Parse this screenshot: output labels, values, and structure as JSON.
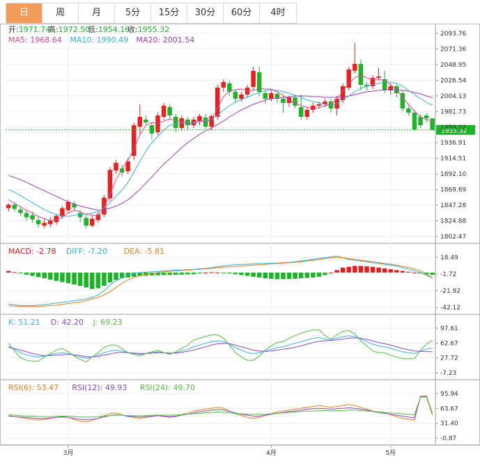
{
  "tabs": [
    "日",
    "周",
    "月",
    "5分",
    "15分",
    "30分",
    "60分",
    "4时"
  ],
  "active_tab": 0,
  "colors": {
    "up": "#e82020",
    "down": "#1eb42a",
    "ma5": "#d94a8c",
    "ma10": "#36b4d8",
    "ma20": "#9b3fb5",
    "macd": "#e11d1d",
    "diff": "#2fb0dc",
    "dea": "#f07c1b",
    "k": "#3bb0e0",
    "d": "#8a49c8",
    "j": "#4fbf3c",
    "rsi6": "#f07c1b",
    "rsi12": "#8a49c8",
    "rsi24": "#4fbf3c"
  },
  "price_panel": {
    "info": [
      {
        "label": "开:",
        "value": "1971.74"
      },
      {
        "label": "高:",
        "value": "1972.50"
      },
      {
        "label": "低:",
        "value": "1954.16"
      },
      {
        "label": "收:",
        "value": "1955.32"
      }
    ],
    "ma_labels": [
      "MA5: 1968.64",
      "MA10: 1990.49",
      "MA20: 2001.54"
    ],
    "current_price": "1955.32",
    "ticks": [
      "2093.76",
      "2071.36",
      "2048.95",
      "2026.54",
      "2004.13",
      "1981.73",
      "1959.32",
      "1936.91",
      "1914.51",
      "1892.10",
      "1869.69",
      "1847.28",
      "1824.88",
      "1802.47"
    ]
  },
  "macd_panel": {
    "labels": [
      "MACD: -2.78",
      "DIFF: -7.20",
      "DEA: -5.81"
    ],
    "ticks": [
      "18.49",
      "-1.72",
      "-21.92",
      "-42.12"
    ]
  },
  "kdj_panel": {
    "labels": [
      "K: 51.21",
      "D: 42.20",
      "J: 69.23"
    ],
    "ticks": [
      "97.61",
      "62.67",
      "27.72",
      "-7.23"
    ]
  },
  "rsi_panel": {
    "labels": [
      "RSI(6): 53.47",
      "RSI(12): 49.93",
      "RSI(24): 49.70"
    ],
    "ticks": [
      "95.94",
      "63.67",
      "31.40",
      "-0.87"
    ]
  },
  "x_labels": [
    "3月",
    "4月",
    "5月"
  ],
  "chart_data": [
    {
      "type": "candlestick",
      "title": "",
      "ylim": [
        1802.47,
        2093.76
      ],
      "candles": [
        [
          1843,
          1848,
          1838,
          1850
        ],
        [
          1848,
          1842,
          1838,
          1851
        ],
        [
          1841,
          1836,
          1832,
          1845
        ],
        [
          1836,
          1830,
          1825,
          1840
        ],
        [
          1833,
          1827,
          1822,
          1838
        ],
        [
          1826,
          1820,
          1815,
          1830
        ],
        [
          1818,
          1822,
          1814,
          1828
        ],
        [
          1820,
          1825,
          1816,
          1830
        ],
        [
          1823,
          1832,
          1819,
          1835
        ],
        [
          1831,
          1843,
          1828,
          1846
        ],
        [
          1840,
          1852,
          1836,
          1855
        ],
        [
          1849,
          1844,
          1840,
          1853
        ],
        [
          1836,
          1830,
          1823,
          1840
        ],
        [
          1829,
          1818,
          1814,
          1833
        ],
        [
          1818,
          1828,
          1815,
          1832
        ],
        [
          1826,
          1834,
          1822,
          1838
        ],
        [
          1834,
          1858,
          1830,
          1862
        ],
        [
          1857,
          1898,
          1853,
          1902
        ],
        [
          1897,
          1908,
          1892,
          1912
        ],
        [
          1900,
          1894,
          1888,
          1905
        ],
        [
          1896,
          1910,
          1892,
          1915
        ],
        [
          1918,
          1962,
          1912,
          1966
        ],
        [
          1960,
          1974,
          1950,
          1992
        ],
        [
          1970,
          1966,
          1962,
          1976
        ],
        [
          1962,
          1950,
          1942,
          1967
        ],
        [
          1952,
          1976,
          1948,
          1980
        ],
        [
          1974,
          1990,
          1970,
          1994
        ],
        [
          1988,
          1976,
          1970,
          1992
        ],
        [
          1974,
          1958,
          1952,
          1978
        ],
        [
          1958,
          1972,
          1954,
          1976
        ],
        [
          1970,
          1962,
          1956,
          1974
        ],
        [
          1962,
          1970,
          1958,
          1974
        ],
        [
          1968,
          1975,
          1962,
          1978
        ],
        [
          1973,
          1960,
          1956,
          1978
        ],
        [
          1960,
          1975,
          1955,
          1978
        ],
        [
          1974,
          2016,
          1970,
          2020
        ],
        [
          2016,
          2024,
          2010,
          2028
        ],
        [
          2022,
          2010,
          2004,
          2026
        ],
        [
          2010,
          2000,
          1994,
          2014
        ],
        [
          2000,
          2006,
          1996,
          2010
        ],
        [
          2006,
          2016,
          2002,
          2020
        ],
        [
          2017,
          2040,
          2012,
          2046
        ],
        [
          2038,
          2010,
          2004,
          2046
        ],
        [
          2008,
          2000,
          1993,
          2012
        ],
        [
          2000,
          2008,
          1996,
          2012
        ],
        [
          2007,
          2000,
          1994,
          2010
        ],
        [
          2000,
          1994,
          1980,
          2004
        ],
        [
          1994,
          2002,
          1988,
          2004
        ],
        [
          2002,
          1990,
          1986,
          2006
        ],
        [
          1988,
          1974,
          1970,
          2006
        ],
        [
          1974,
          1984,
          1970,
          1988
        ],
        [
          1984,
          1990,
          1980,
          1994
        ],
        [
          1990,
          1992,
          1986,
          1996
        ],
        [
          1992,
          1996,
          1988,
          2000
        ],
        [
          1996,
          1986,
          1980,
          2000
        ],
        [
          1986,
          2000,
          1976,
          2004
        ],
        [
          1998,
          2018,
          1994,
          2022
        ],
        [
          2016,
          2042,
          2012,
          2046
        ],
        [
          2040,
          2050,
          2036,
          2080
        ],
        [
          2050,
          2020,
          2012,
          2056
        ],
        [
          2020,
          2018,
          2012,
          2024
        ],
        [
          2018,
          2030,
          2014,
          2034
        ],
        [
          2030,
          2032,
          2026,
          2044
        ],
        [
          2028,
          2012,
          2008,
          2040
        ],
        [
          2012,
          2018,
          2006,
          2022
        ],
        [
          2018,
          2008,
          2002,
          2020
        ],
        [
          2008,
          1986,
          1982,
          2012
        ],
        [
          1986,
          1980,
          1976,
          1990
        ],
        [
          1980,
          1956,
          1954,
          1984
        ],
        [
          1974,
          1962,
          1958,
          1978
        ],
        [
          1976,
          1972,
          1966,
          1980
        ],
        [
          1971.74,
          1955.32,
          1954.16,
          1972.5
        ]
      ],
      "ma5": [
        1855,
        1850,
        1845,
        1840,
        1836,
        1831,
        1828,
        1825,
        1826,
        1830,
        1836,
        1840,
        1838,
        1834,
        1833,
        1832,
        1844,
        1863,
        1884,
        1899,
        1912,
        1928,
        1948,
        1962,
        1966,
        1964,
        1968,
        1971,
        1969,
        1968,
        1965,
        1964,
        1968,
        1967,
        1970,
        1986,
        2003,
        2011,
        2013,
        2014,
        2011,
        2012,
        2015,
        2014,
        2014,
        2010,
        2005,
        1998,
        1994,
        1990,
        1988,
        1985,
        1987,
        1990,
        1992,
        2000,
        2011,
        2022,
        2030,
        2034,
        2030,
        2028,
        2028,
        2026,
        2020,
        2013,
        2002,
        1992,
        1982,
        1974,
        1970,
        1968.64
      ],
      "ma10": [
        1870,
        1866,
        1861,
        1856,
        1851,
        1846,
        1841,
        1837,
        1834,
        1832,
        1831,
        1833,
        1834,
        1835,
        1836,
        1838,
        1843,
        1851,
        1860,
        1869,
        1880,
        1895,
        1910,
        1925,
        1937,
        1946,
        1955,
        1962,
        1964,
        1965,
        1965,
        1966,
        1968,
        1969,
        1970,
        1976,
        1984,
        1990,
        1995,
        1999,
        2002,
        2006,
        2009,
        2012,
        2013,
        2012,
        2010,
        2008,
        2005,
        2002,
        1998,
        1996,
        1994,
        1992,
        1991,
        1993,
        1998,
        2004,
        2010,
        2015,
        2018,
        2020,
        2022,
        2024,
        2024,
        2022,
        2018,
        2012,
        2006,
        2000,
        1995,
        1990.49
      ],
      "ma20": [
        1890,
        1887,
        1884,
        1880,
        1876,
        1872,
        1868,
        1864,
        1860,
        1856,
        1852,
        1849,
        1846,
        1844,
        1842,
        1840,
        1841,
        1843,
        1846,
        1850,
        1855,
        1862,
        1870,
        1879,
        1888,
        1897,
        1906,
        1914,
        1922,
        1930,
        1937,
        1943,
        1949,
        1954,
        1958,
        1963,
        1968,
        1974,
        1979,
        1984,
        1988,
        1992,
        1995,
        1998,
        2000,
        2001,
        2002,
        2003,
        2004,
        2004,
        2004,
        2003,
        2003,
        2002,
        2002,
        2002,
        2003,
        2004,
        2006,
        2008,
        2010,
        2011,
        2012,
        2013,
        2013,
        2013,
        2012,
        2011,
        2009,
        2007,
        2004,
        2001.54
      ]
    },
    {
      "type": "macd",
      "ylim": [
        -42.12,
        18.49
      ],
      "macd": [
        2,
        0.5,
        -1,
        -2.5,
        -4,
        -5.5,
        -7,
        -8.5,
        -10,
        -11.5,
        -13,
        -14.5,
        -16,
        -18,
        -20,
        -19,
        -16,
        -12,
        -9,
        -7,
        -6,
        -5,
        -4,
        -3.8,
        -3.5,
        -3.2,
        -3,
        -2.8,
        -2.6,
        -2.4,
        -2.2,
        -2,
        -1,
        0,
        0.5,
        0.2,
        -0.5,
        -1,
        -2,
        -3,
        -4,
        -5,
        -6,
        -7,
        -7.5,
        -8,
        -8,
        -7.8,
        -7.5,
        -7,
        -6.5,
        -6,
        -5,
        -3,
        0,
        3,
        6,
        7,
        8,
        8,
        7.5,
        7,
        6,
        5,
        4,
        3,
        2,
        1,
        0,
        -1,
        -2,
        -2.78
      ],
      "diff": [
        -38,
        -39,
        -40,
        -40,
        -40,
        -39.5,
        -39,
        -38,
        -37,
        -36,
        -35,
        -34,
        -33,
        -32,
        -30,
        -27,
        -22,
        -15,
        -10,
        -6,
        -3,
        -1,
        0,
        0.5,
        1,
        1.5,
        2,
        2.5,
        3,
        3,
        3.5,
        4,
        4.5,
        5,
        6,
        7,
        8,
        9,
        9.5,
        10,
        10,
        10.5,
        11,
        11,
        11,
        11.5,
        12,
        12.5,
        13,
        14,
        15,
        16,
        17,
        18,
        19,
        20,
        18,
        16,
        15,
        14,
        13,
        12,
        11,
        10,
        9,
        8,
        6,
        4,
        2,
        0,
        -3,
        -7.2
      ],
      "dea": [
        -40,
        -40.5,
        -41,
        -41,
        -41,
        -41,
        -40.5,
        -40,
        -39.5,
        -38.5,
        -37.5,
        -36.5,
        -35.5,
        -34,
        -32,
        -30,
        -27,
        -23,
        -18,
        -13,
        -9,
        -6,
        -4,
        -2,
        -1,
        0,
        1,
        1.5,
        2,
        2.5,
        3,
        3.5,
        4,
        4.5,
        5,
        6,
        6.5,
        7,
        7.5,
        8,
        8.5,
        9,
        9.5,
        10,
        10.5,
        11,
        11.5,
        12,
        12.5,
        13,
        14,
        15,
        16,
        17,
        18,
        18.5,
        18,
        17,
        16,
        15,
        14,
        13,
        12,
        11,
        10,
        9,
        7.5,
        6,
        4.5,
        2,
        -2,
        -5.81
      ]
    },
    {
      "type": "kdj",
      "ylim": [
        -7.23,
        97.61
      ],
      "k": [
        55,
        48,
        40,
        35,
        32,
        30,
        32,
        35,
        38,
        40,
        38,
        34,
        30,
        27,
        30,
        34,
        40,
        44,
        46,
        44,
        40,
        38,
        36,
        38,
        40,
        42,
        40,
        38,
        40,
        44,
        48,
        54,
        58,
        62,
        66,
        68,
        66,
        60,
        52,
        46,
        40,
        38,
        40,
        44,
        48,
        52,
        54,
        58,
        62,
        66,
        70,
        74,
        76,
        72,
        70,
        74,
        78,
        80,
        78,
        72,
        66,
        60,
        56,
        54,
        50,
        46,
        42,
        40,
        38,
        44,
        48,
        51.21
      ],
      "d": [
        52,
        50,
        46,
        42,
        38,
        35,
        33,
        33,
        34,
        35,
        36,
        35,
        33,
        31,
        30,
        31,
        34,
        37,
        40,
        41,
        40,
        39,
        38,
        38,
        39,
        40,
        40,
        39,
        39,
        41,
        43,
        46,
        50,
        54,
        58,
        61,
        62,
        61,
        58,
        54,
        50,
        46,
        44,
        43,
        44,
        46,
        48,
        50,
        53,
        56,
        60,
        64,
        67,
        68,
        69,
        70,
        72,
        74,
        75,
        74,
        71,
        68,
        64,
        61,
        58,
        54,
        50,
        47,
        44,
        43,
        42.5,
        42.2
      ],
      "j": [
        62,
        44,
        28,
        22,
        20,
        20,
        30,
        38,
        46,
        50,
        42,
        32,
        24,
        18,
        30,
        40,
        52,
        58,
        58,
        50,
        40,
        36,
        32,
        38,
        42,
        46,
        40,
        36,
        42,
        50,
        58,
        70,
        74,
        78,
        82,
        82,
        74,
        58,
        40,
        30,
        22,
        22,
        32,
        46,
        56,
        64,
        66,
        74,
        80,
        86,
        90,
        94,
        94,
        80,
        72,
        82,
        90,
        92,
        84,
        68,
        56,
        44,
        40,
        40,
        34,
        30,
        26,
        26,
        26,
        46,
        60,
        69.23
      ]
    },
    {
      "type": "rsi",
      "ylim": [
        -0.87,
        95.94
      ],
      "rsi6": [
        48,
        46,
        44,
        42,
        40,
        38,
        40,
        42,
        44,
        46,
        44,
        40,
        36,
        34,
        38,
        42,
        48,
        52,
        54,
        50,
        46,
        44,
        42,
        44,
        46,
        48,
        46,
        44,
        46,
        50,
        54,
        58,
        60,
        62,
        64,
        66,
        64,
        58,
        52,
        48,
        44,
        42,
        44,
        48,
        52,
        56,
        58,
        60,
        62,
        64,
        66,
        68,
        70,
        68,
        66,
        68,
        70,
        72,
        70,
        66,
        62,
        58,
        56,
        54,
        50,
        46,
        42,
        40,
        38,
        90,
        91,
        53.47
      ],
      "rsi12": [
        47,
        46,
        45,
        44,
        43,
        42,
        42,
        43,
        44,
        45,
        44,
        42,
        40,
        39,
        40,
        42,
        45,
        48,
        50,
        49,
        47,
        46,
        45,
        46,
        47,
        48,
        47,
        46,
        47,
        49,
        51,
        54,
        56,
        58,
        60,
        61,
        60,
        57,
        54,
        51,
        49,
        47,
        47,
        49,
        51,
        53,
        55,
        57,
        58,
        60,
        62,
        63,
        64,
        63,
        62,
        63,
        64,
        65,
        64,
        62,
        60,
        57,
        55,
        53,
        51,
        49,
        47,
        45,
        43,
        89,
        90,
        49.93
      ],
      "rsi24": [
        50,
        49,
        48,
        47,
        47,
        46,
        46,
        46,
        47,
        47,
        47,
        46,
        45,
        45,
        45,
        46,
        47,
        48,
        49,
        49,
        48,
        48,
        48,
        48,
        49,
        49,
        49,
        49,
        49,
        50,
        51,
        52,
        53,
        54,
        55,
        56,
        55,
        54,
        53,
        52,
        51,
        51,
        51,
        51,
        52,
        53,
        54,
        55,
        56,
        57,
        58,
        58,
        59,
        59,
        58,
        59,
        59,
        60,
        60,
        59,
        58,
        57,
        56,
        55,
        54,
        53,
        52,
        51,
        50,
        88,
        89,
        49.7
      ]
    }
  ]
}
